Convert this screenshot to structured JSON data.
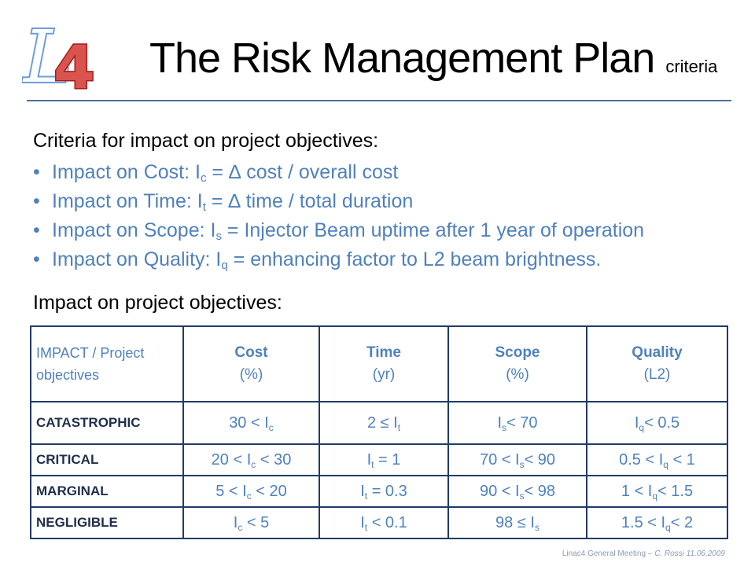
{
  "slide": {
    "title": "The Risk Management Plan",
    "title_suffix": "criteria",
    "logo_text": "L4",
    "heading_criteria": "Criteria for impact on project objectives:",
    "bullets": [
      {
        "pre": "Impact on Cost: I",
        "sub": "c",
        "post": " = ∆ cost / overall cost"
      },
      {
        "pre": "Impact on Time: I",
        "sub": "t",
        "post": " = ∆ time / total duration"
      },
      {
        "pre": "Impact on Scope: I",
        "sub": "s",
        "post": " = Injector Beam uptime after 1 year of operation"
      },
      {
        "pre": "Impact on Quality: I",
        "sub": "q",
        "post": " = enhancing factor to L2 beam brightness."
      }
    ],
    "heading_impact": "Impact on project objectives:",
    "footer_prefix": "Linac4 General Meeting – ",
    "footer_author": "C. Rossi 11.06.2009"
  },
  "table": {
    "corner": "IMPACT / Project objectives",
    "columns": [
      {
        "name": "Cost",
        "unit": "(%)"
      },
      {
        "name": "Time",
        "unit": "(yr)"
      },
      {
        "name": "Scope",
        "unit": "(%)"
      },
      {
        "name": "Quality",
        "unit": "(L2)"
      }
    ],
    "rows": [
      {
        "label": "CATASTROPHIC",
        "cells": [
          {
            "a": "30 < I",
            "s": "c",
            "b": ""
          },
          {
            "a": "2 ≤ I",
            "s": "t",
            "b": ""
          },
          {
            "a": "I",
            "s": "s",
            "b": "< 70"
          },
          {
            "a": "I",
            "s": "q",
            "b": "< 0.5"
          }
        ]
      },
      {
        "label": "CRITICAL",
        "cells": [
          {
            "a": "20 < I",
            "s": "c",
            "b": " < 30"
          },
          {
            "a": "I",
            "s": "t",
            "b": " = 1"
          },
          {
            "a": "70 < I",
            "s": "s",
            "b": "< 90"
          },
          {
            "a": "0.5 < I",
            "s": "q",
            "b": " < 1"
          }
        ]
      },
      {
        "label": "MARGINAL",
        "cells": [
          {
            "a": "5 < I",
            "s": "c",
            "b": " < 20"
          },
          {
            "a": "I",
            "s": "t",
            "b": " = 0.3"
          },
          {
            "a": "90 < I",
            "s": "s",
            "b": "< 98"
          },
          {
            "a": "1 < I",
            "s": "q",
            "b": "< 1.5"
          }
        ]
      },
      {
        "label": "NEGLIGIBLE",
        "cells": [
          {
            "a": "I",
            "s": "c",
            "b": " < 5"
          },
          {
            "a": "I",
            "s": "t",
            "b": " < 0.1"
          },
          {
            "a": "98 ≤ I",
            "s": "s",
            "b": ""
          },
          {
            "a": "1.5 < I",
            "s": "q",
            "b": "< 2"
          }
        ]
      }
    ]
  },
  "colors": {
    "accent": "#4f81bd",
    "table_border": "#1f3c66",
    "logo_l": "#6a9ee0",
    "logo_4_fill": "#d9534f",
    "logo_4_stroke": "#a81c1c"
  }
}
